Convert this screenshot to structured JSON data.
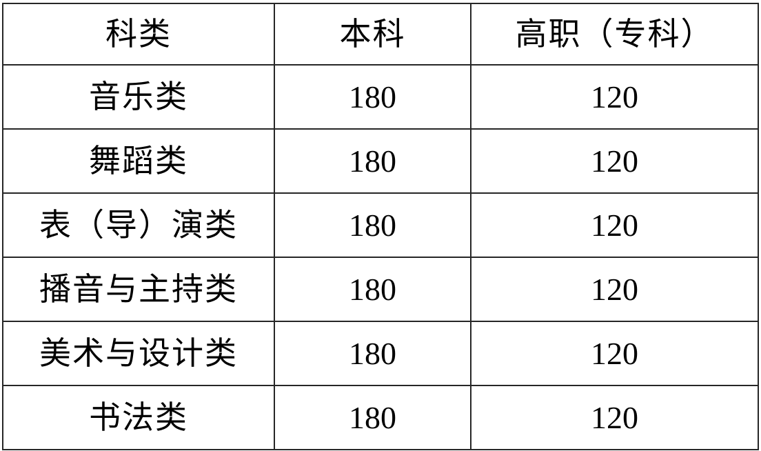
{
  "page": {
    "background_color": "#ffffff",
    "border_color": "#262626",
    "text_color": "#000000"
  },
  "table": {
    "columns": [
      {
        "key": "category",
        "label": "科类"
      },
      {
        "key": "benke",
        "label": "本科"
      },
      {
        "key": "gaozhi",
        "label": "高职（专科）"
      }
    ],
    "rows": [
      {
        "category": "音乐类",
        "benke": "180",
        "gaozhi": "120"
      },
      {
        "category": "舞蹈类",
        "benke": "180",
        "gaozhi": "120"
      },
      {
        "category": "表（导）演类",
        "benke": "180",
        "gaozhi": "120"
      },
      {
        "category": "播音与主持类",
        "benke": "180",
        "gaozhi": "120"
      },
      {
        "category": "美术与设计类",
        "benke": "180",
        "gaozhi": "120"
      },
      {
        "category": "书法类",
        "benke": "180",
        "gaozhi": "120"
      }
    ]
  }
}
